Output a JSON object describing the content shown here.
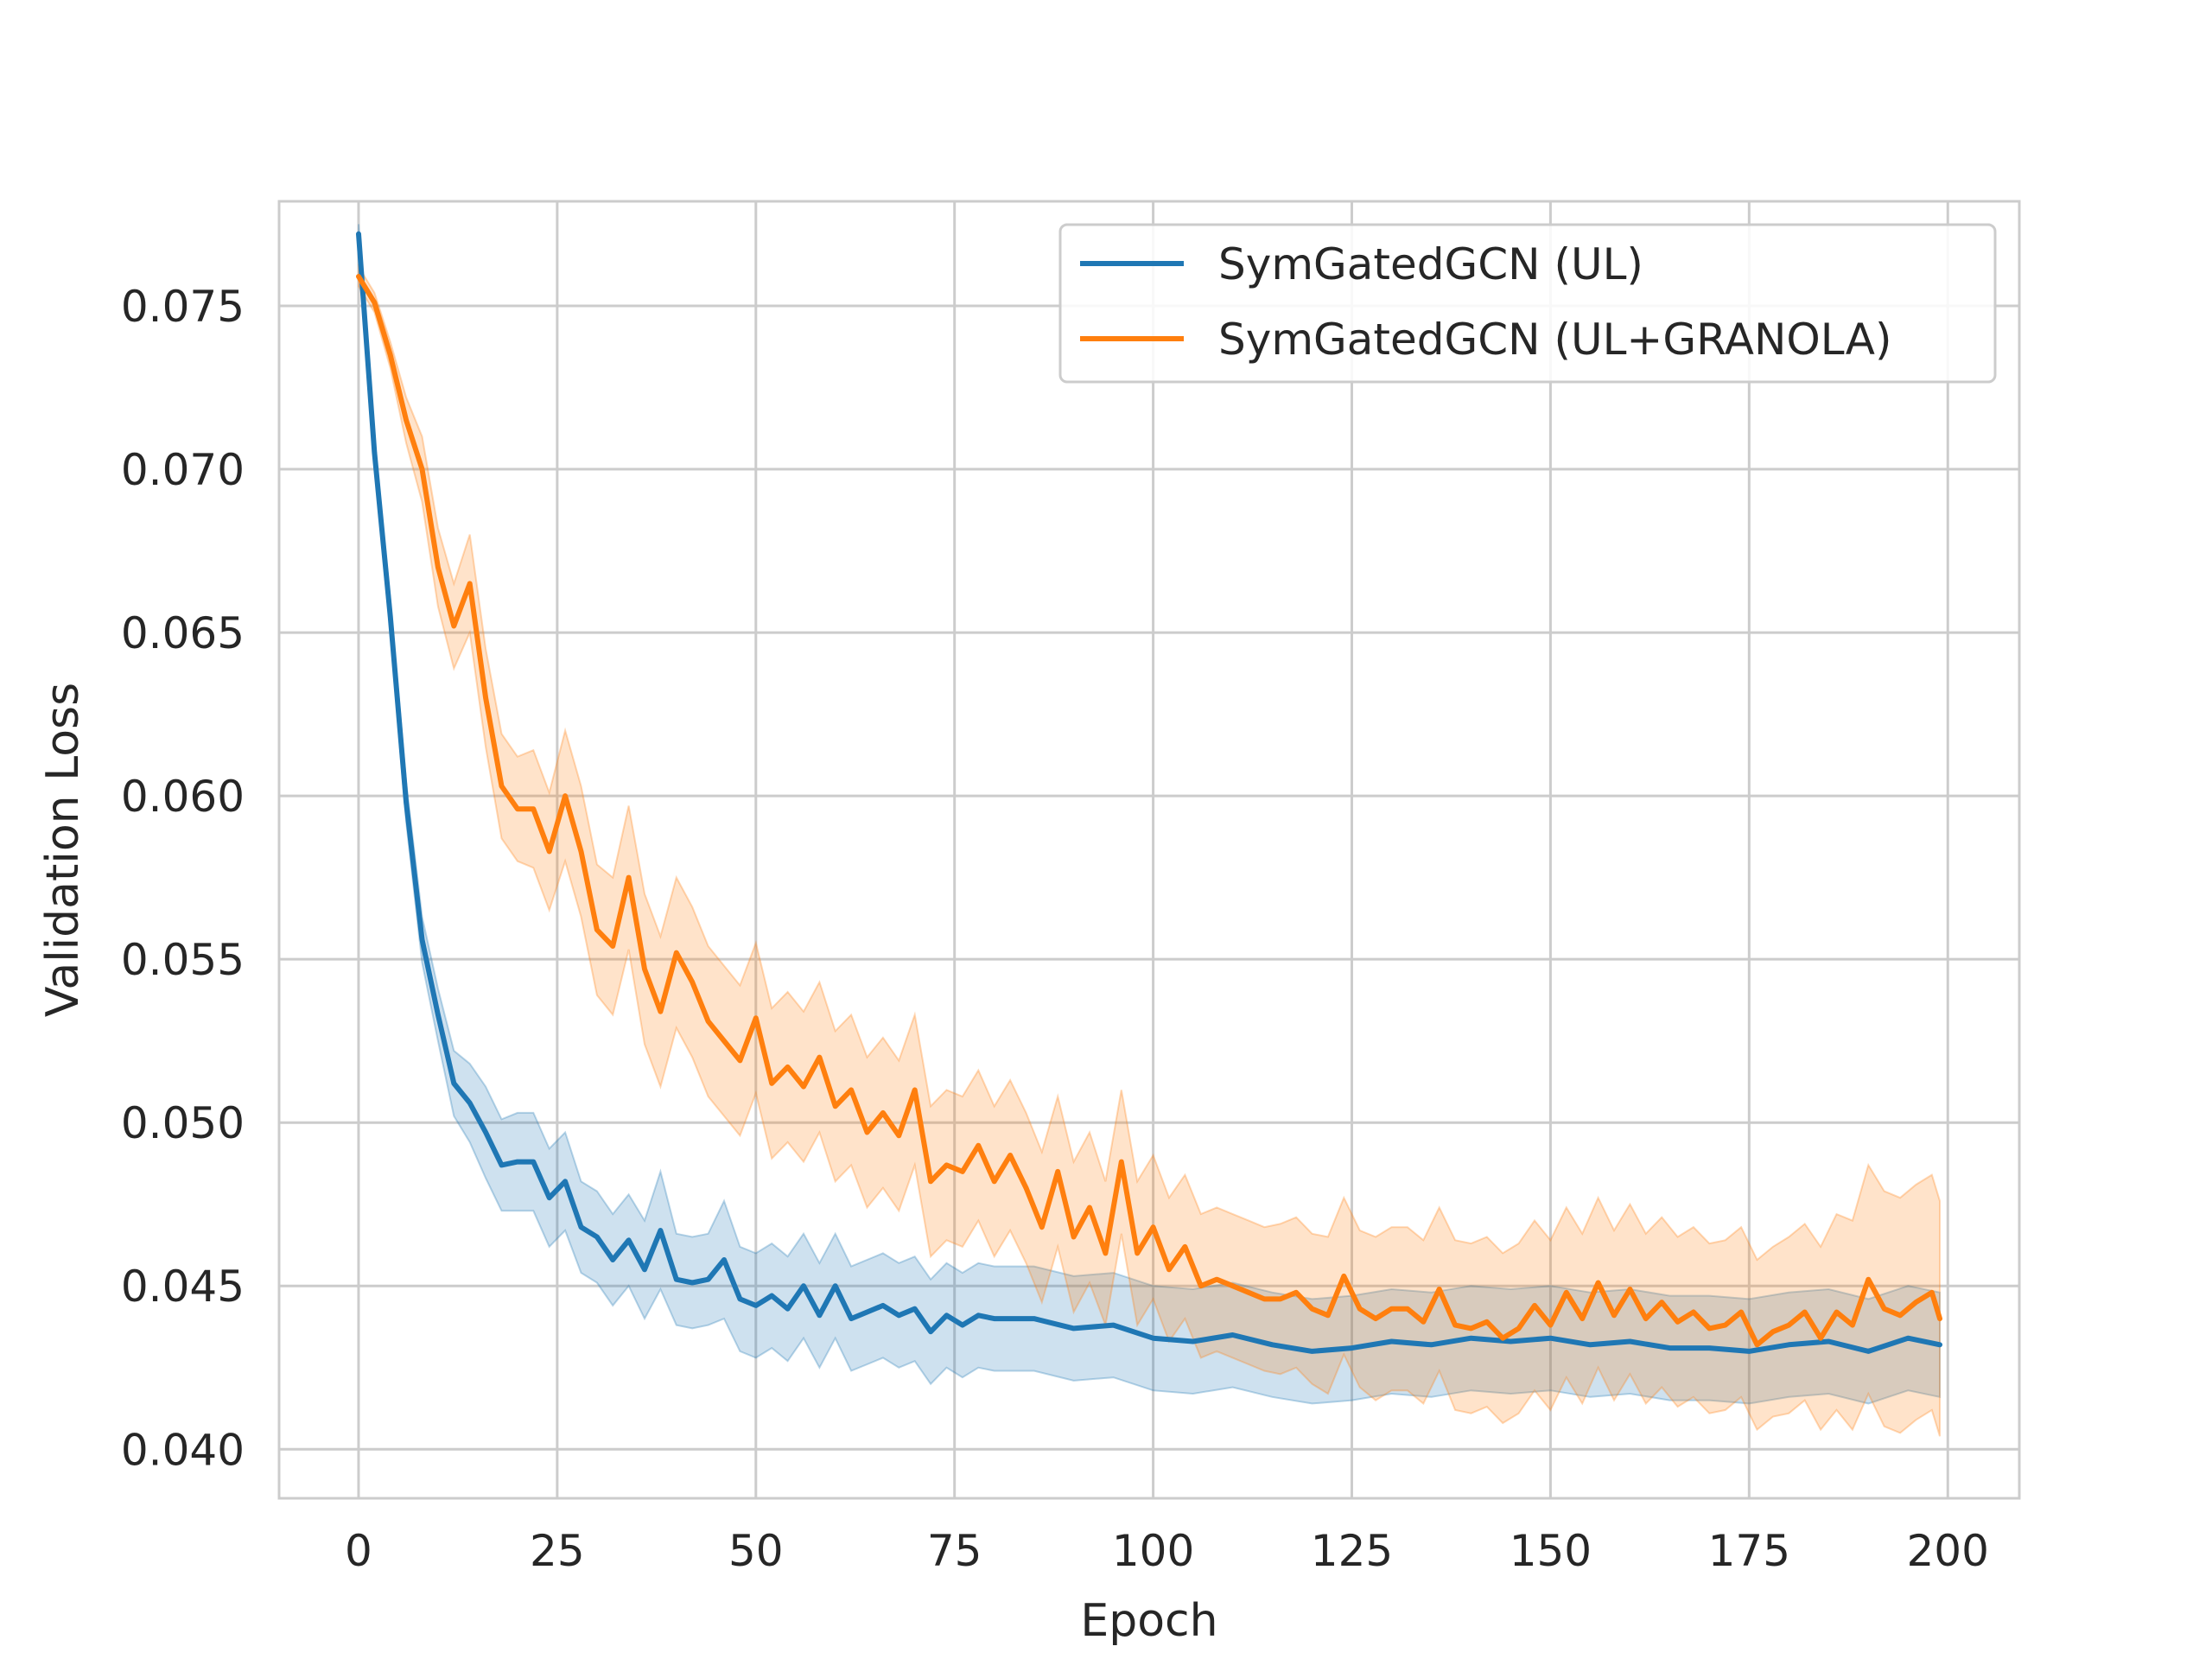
{
  "chart_data": {
    "type": "line",
    "title": "",
    "xlabel": "Epoch",
    "ylabel": "Validation Loss",
    "xlim": [
      -10,
      209
    ],
    "ylim": [
      0.0385,
      0.0782
    ],
    "xticks": [
      0,
      25,
      50,
      75,
      100,
      125,
      150,
      175,
      200
    ],
    "yticks": [
      0.04,
      0.045,
      0.05,
      0.055,
      0.06,
      0.065,
      0.07,
      0.075
    ],
    "ytick_labels": [
      "0.040",
      "0.045",
      "0.050",
      "0.055",
      "0.060",
      "0.065",
      "0.070",
      "0.075"
    ],
    "grid": true,
    "legend_position": "top-right",
    "series": [
      {
        "name": "SymGatedGCN (UL)",
        "color": "#1f77b4",
        "shaded_band": true,
        "x": [
          0,
          2,
          4,
          6,
          8,
          10,
          12,
          14,
          16,
          18,
          20,
          22,
          24,
          26,
          28,
          30,
          32,
          34,
          36,
          38,
          40,
          42,
          44,
          46,
          48,
          50,
          52,
          54,
          56,
          58,
          60,
          62,
          64,
          66,
          68,
          70,
          72,
          74,
          76,
          78,
          80,
          85,
          90,
          95,
          100,
          105,
          110,
          115,
          120,
          125,
          130,
          135,
          140,
          145,
          150,
          155,
          160,
          165,
          170,
          175,
          180,
          185,
          190,
          195,
          199
        ],
        "y": [
          0.0772,
          0.0705,
          0.0655,
          0.0598,
          0.0556,
          0.0533,
          0.0512,
          0.0506,
          0.0497,
          0.0487,
          0.0488,
          0.0488,
          0.0477,
          0.0482,
          0.0468,
          0.0465,
          0.0458,
          0.0464,
          0.0455,
          0.0467,
          0.0452,
          0.0451,
          0.0452,
          0.0458,
          0.0446,
          0.0444,
          0.0447,
          0.0443,
          0.045,
          0.0441,
          0.045,
          0.044,
          0.0442,
          0.0444,
          0.0441,
          0.0443,
          0.0436,
          0.0441,
          0.0438,
          0.0441,
          0.044,
          0.044,
          0.0437,
          0.0438,
          0.0434,
          0.0433,
          0.0435,
          0.0432,
          0.043,
          0.0431,
          0.0433,
          0.0432,
          0.0434,
          0.0433,
          0.0434,
          0.0432,
          0.0433,
          0.0431,
          0.0431,
          0.043,
          0.0432,
          0.0433,
          0.043,
          0.0434,
          0.0432
        ],
        "band_halfwidth": [
          0.0003,
          0.0004,
          0.0005,
          0.0006,
          0.0007,
          0.0008,
          0.001,
          0.0012,
          0.0014,
          0.0014,
          0.0015,
          0.0015,
          0.0015,
          0.0015,
          0.0014,
          0.0014,
          0.0014,
          0.0014,
          0.0015,
          0.0018,
          0.0014,
          0.0014,
          0.0014,
          0.0018,
          0.0016,
          0.0016,
          0.0016,
          0.0016,
          0.0016,
          0.0016,
          0.0016,
          0.0016,
          0.0016,
          0.0016,
          0.0016,
          0.0016,
          0.0016,
          0.0016,
          0.0016,
          0.0016,
          0.0016,
          0.0016,
          0.0016,
          0.0016,
          0.0016,
          0.0016,
          0.0016,
          0.0016,
          0.0016,
          0.0016,
          0.0016,
          0.0016,
          0.0016,
          0.0016,
          0.0016,
          0.0016,
          0.0016,
          0.0016,
          0.0016,
          0.0016,
          0.0016,
          0.0016,
          0.0016,
          0.0016,
          0.0016
        ]
      },
      {
        "name": "SymGatedGCN (UL+GRANOLA)",
        "color": "#ff7f0e",
        "shaded_band": true,
        "x": [
          0,
          2,
          4,
          6,
          8,
          10,
          12,
          14,
          16,
          18,
          20,
          22,
          24,
          26,
          28,
          30,
          32,
          34,
          36,
          38,
          40,
          42,
          44,
          46,
          48,
          50,
          52,
          54,
          56,
          58,
          60,
          62,
          64,
          66,
          68,
          70,
          72,
          74,
          76,
          78,
          80,
          82,
          84,
          86,
          88,
          90,
          92,
          94,
          96,
          98,
          100,
          102,
          104,
          106,
          108,
          110,
          112,
          114,
          116,
          118,
          120,
          122,
          124,
          126,
          128,
          130,
          132,
          134,
          136,
          138,
          140,
          142,
          144,
          146,
          148,
          150,
          152,
          154,
          156,
          158,
          160,
          162,
          164,
          166,
          168,
          170,
          172,
          174,
          176,
          178,
          180,
          182,
          184,
          186,
          188,
          190,
          192,
          194,
          196,
          198,
          199
        ],
        "y": [
          0.0759,
          0.0751,
          0.0735,
          0.0715,
          0.07,
          0.067,
          0.0652,
          0.0665,
          0.063,
          0.0603,
          0.0596,
          0.0596,
          0.0583,
          0.06,
          0.0583,
          0.0559,
          0.0554,
          0.0575,
          0.0547,
          0.0534,
          0.0552,
          0.0543,
          0.0531,
          0.0525,
          0.0519,
          0.0532,
          0.0512,
          0.0517,
          0.0511,
          0.052,
          0.0505,
          0.051,
          0.0497,
          0.0503,
          0.0496,
          0.051,
          0.0482,
          0.0487,
          0.0485,
          0.0493,
          0.0482,
          0.049,
          0.048,
          0.0468,
          0.0485,
          0.0465,
          0.0474,
          0.046,
          0.0488,
          0.046,
          0.0468,
          0.0455,
          0.0462,
          0.045,
          0.0452,
          0.045,
          0.0448,
          0.0446,
          0.0446,
          0.0448,
          0.0443,
          0.0441,
          0.0453,
          0.0443,
          0.044,
          0.0443,
          0.0443,
          0.0439,
          0.0449,
          0.0438,
          0.0437,
          0.0439,
          0.0434,
          0.0437,
          0.0444,
          0.0438,
          0.0448,
          0.044,
          0.0451,
          0.0441,
          0.0449,
          0.044,
          0.0445,
          0.0439,
          0.0442,
          0.0437,
          0.0438,
          0.0442,
          0.0432,
          0.0436,
          0.0438,
          0.0442,
          0.0434,
          0.0442,
          0.0438,
          0.0452,
          0.0443,
          0.0441,
          0.0445,
          0.0448,
          0.044
        ],
        "band_halfwidth": [
          0.0003,
          0.0003,
          0.0004,
          0.0007,
          0.001,
          0.0012,
          0.0013,
          0.0015,
          0.0015,
          0.0016,
          0.0016,
          0.0018,
          0.0018,
          0.002,
          0.002,
          0.002,
          0.0021,
          0.0022,
          0.0023,
          0.0023,
          0.0023,
          0.0023,
          0.0023,
          0.0023,
          0.0023,
          0.0023,
          0.0023,
          0.0023,
          0.0023,
          0.0023,
          0.0023,
          0.0023,
          0.0023,
          0.0023,
          0.0023,
          0.0023,
          0.0023,
          0.0023,
          0.0023,
          0.0023,
          0.0023,
          0.0023,
          0.0023,
          0.0023,
          0.0023,
          0.0023,
          0.0023,
          0.0022,
          0.0022,
          0.0022,
          0.0022,
          0.0022,
          0.0022,
          0.0022,
          0.0022,
          0.0022,
          0.0022,
          0.0022,
          0.0023,
          0.0023,
          0.0023,
          0.0024,
          0.0024,
          0.0024,
          0.0025,
          0.0025,
          0.0025,
          0.0025,
          0.0025,
          0.0026,
          0.0026,
          0.0026,
          0.0026,
          0.0026,
          0.0026,
          0.0026,
          0.0026,
          0.0026,
          0.0026,
          0.0026,
          0.0026,
          0.0026,
          0.0026,
          0.0026,
          0.0026,
          0.0026,
          0.0026,
          0.0026,
          0.0026,
          0.0026,
          0.0027,
          0.0027,
          0.0028,
          0.003,
          0.0032,
          0.0035,
          0.0036,
          0.0036,
          0.0036,
          0.0036,
          0.0036
        ]
      }
    ]
  }
}
